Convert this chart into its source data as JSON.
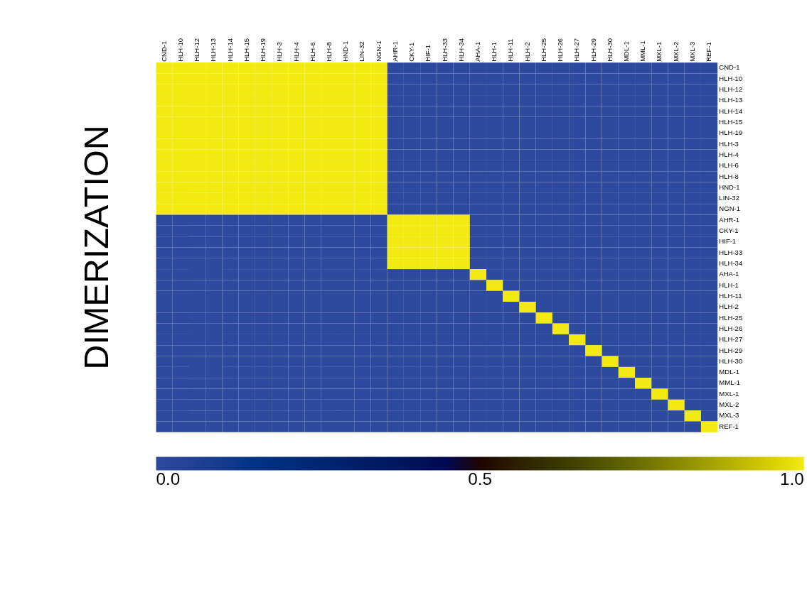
{
  "chart_data": {
    "type": "heatmap",
    "ylabel": "DIMERIZATION",
    "categories": [
      "CND-1",
      "HLH-10",
      "HLH-12",
      "HLH-13",
      "HLH-14",
      "HLH-15",
      "HLH-19",
      "HLH-3",
      "HLH-4",
      "HLH-6",
      "HLH-8",
      "HND-1",
      "LIN-32",
      "NGN-1",
      "AHR-1",
      "CKY-1",
      "HIF-1",
      "HLH-33",
      "HLH-34",
      "AHA-1",
      "HLH-1",
      "HLH-11",
      "HLH-2",
      "HLH-25",
      "HLH-26",
      "HLH-27",
      "HLH-29",
      "HLH-30",
      "MDL-1",
      "MML-1",
      "MXL-1",
      "MXL-2",
      "MXL-3",
      "REF-1"
    ],
    "y_categories": [
      "CND-1",
      "HLH-10",
      "HLH-12",
      "HLH-13",
      "HLH-14",
      "HLH-15",
      "HLH-19",
      "HLH-3",
      "HLH-4",
      "HLH-6",
      "HLH-8",
      "HND-1",
      "LIN-32",
      "NGN-1",
      "AHR-1",
      "CKY-1",
      "HIF-1",
      "HLH-33",
      "HLH-34",
      "AHA-1",
      "HLH-1",
      "HLH-11",
      "HLH-2",
      "HLH-25",
      "HLH-26",
      "HLH-27",
      "HLH-29",
      "HLH-30",
      "MDL-1",
      "MML-1",
      "MXL-1",
      "MXL-2",
      "MXL-3",
      "REF-1"
    ],
    "cells": [
      [
        1,
        1,
        1,
        1,
        1,
        1,
        1,
        1,
        1,
        1,
        1,
        1,
        1,
        1,
        0,
        0,
        0,
        0,
        0,
        0,
        0,
        0,
        0,
        0,
        0,
        0,
        0,
        0,
        0,
        0,
        0,
        0,
        0,
        0
      ],
      [
        1,
        1,
        1,
        1,
        1,
        1,
        1,
        1,
        1,
        1,
        1,
        1,
        1,
        1,
        0,
        0,
        0,
        0,
        0,
        0,
        0,
        0,
        0,
        0,
        0,
        0,
        0,
        0,
        0,
        0,
        0,
        0,
        0,
        0
      ],
      [
        1,
        1,
        1,
        1,
        1,
        1,
        1,
        1,
        1,
        1,
        1,
        1,
        1,
        1,
        0,
        0,
        0,
        0,
        0,
        0,
        0,
        0,
        0,
        0,
        0,
        0,
        0,
        0,
        0,
        0,
        0,
        0,
        0,
        0
      ],
      [
        1,
        1,
        1,
        1,
        1,
        1,
        1,
        1,
        1,
        1,
        1,
        1,
        1,
        1,
        0,
        0,
        0,
        0,
        0,
        0,
        0,
        0,
        0,
        0,
        0,
        0,
        0,
        0,
        0,
        0,
        0,
        0,
        0,
        0
      ],
      [
        1,
        1,
        1,
        1,
        1,
        1,
        1,
        1,
        1,
        1,
        1,
        1,
        1,
        1,
        0,
        0,
        0,
        0,
        0,
        0,
        0,
        0,
        0,
        0,
        0,
        0,
        0,
        0,
        0,
        0,
        0,
        0,
        0,
        0
      ],
      [
        1,
        1,
        1,
        1,
        1,
        1,
        1,
        1,
        1,
        1,
        1,
        1,
        1,
        1,
        0,
        0,
        0,
        0,
        0,
        0,
        0,
        0,
        0,
        0,
        0,
        0,
        0,
        0,
        0,
        0,
        0,
        0,
        0,
        0
      ],
      [
        1,
        1,
        1,
        1,
        1,
        1,
        1,
        1,
        1,
        1,
        1,
        1,
        1,
        1,
        0,
        0,
        0,
        0,
        0,
        0,
        0,
        0,
        0,
        0,
        0,
        0,
        0,
        0,
        0,
        0,
        0,
        0,
        0,
        0
      ],
      [
        1,
        1,
        1,
        1,
        1,
        1,
        1,
        1,
        1,
        1,
        1,
        1,
        1,
        1,
        0,
        0,
        0,
        0,
        0,
        0,
        0,
        0,
        0,
        0,
        0,
        0,
        0,
        0,
        0,
        0,
        0,
        0,
        0,
        0
      ],
      [
        1,
        1,
        1,
        1,
        1,
        1,
        1,
        1,
        1,
        1,
        1,
        1,
        1,
        1,
        0,
        0,
        0,
        0,
        0,
        0,
        0,
        0,
        0,
        0,
        0,
        0,
        0,
        0,
        0,
        0,
        0,
        0,
        0,
        0
      ],
      [
        1,
        1,
        1,
        1,
        1,
        1,
        1,
        1,
        1,
        1,
        1,
        1,
        1,
        1,
        0,
        0,
        0,
        0,
        0,
        0,
        0,
        0,
        0,
        0,
        0,
        0,
        0,
        0,
        0,
        0,
        0,
        0,
        0,
        0
      ],
      [
        1,
        1,
        1,
        1,
        1,
        1,
        1,
        1,
        1,
        1,
        1,
        1,
        1,
        1,
        0,
        0,
        0,
        0,
        0,
        0,
        0,
        0,
        0,
        0,
        0,
        0,
        0,
        0,
        0,
        0,
        0,
        0,
        0,
        0
      ],
      [
        1,
        1,
        1,
        1,
        1,
        1,
        1,
        1,
        1,
        1,
        1,
        1,
        1,
        1,
        0,
        0,
        0,
        0,
        0,
        0,
        0,
        0,
        0,
        0,
        0,
        0,
        0,
        0,
        0,
        0,
        0,
        0,
        0,
        0
      ],
      [
        1,
        1,
        1,
        1,
        1,
        1,
        1,
        1,
        1,
        1,
        1,
        1,
        1,
        1,
        0,
        0,
        0,
        0,
        0,
        0,
        0,
        0,
        0,
        0,
        0,
        0,
        0,
        0,
        0,
        0,
        0,
        0,
        0,
        0
      ],
      [
        1,
        1,
        1,
        1,
        1,
        1,
        1,
        1,
        1,
        1,
        1,
        1,
        1,
        1,
        0,
        0,
        0,
        0,
        0,
        0,
        0,
        0,
        0,
        0,
        0,
        0,
        0,
        0,
        0,
        0,
        0,
        0,
        0,
        0
      ],
      [
        0,
        0,
        0,
        0,
        0,
        0,
        0,
        0,
        0,
        0,
        0,
        0,
        0,
        0,
        1,
        1,
        1,
        1,
        1,
        0,
        0,
        0,
        0,
        0,
        0,
        0,
        0,
        0,
        0,
        0,
        0,
        0,
        0,
        0
      ],
      [
        0,
        0,
        0,
        0,
        0,
        0,
        0,
        0,
        0,
        0,
        0,
        0,
        0,
        0,
        1,
        1,
        1,
        1,
        1,
        0,
        0,
        0,
        0,
        0,
        0,
        0,
        0,
        0,
        0,
        0,
        0,
        0,
        0,
        0
      ],
      [
        0,
        0,
        0,
        0,
        0,
        0,
        0,
        0,
        0,
        0,
        0,
        0,
        0,
        0,
        1,
        1,
        1,
        1,
        1,
        0,
        0,
        0,
        0,
        0,
        0,
        0,
        0,
        0,
        0,
        0,
        0,
        0,
        0,
        0
      ],
      [
        0,
        0,
        0,
        0,
        0,
        0,
        0,
        0,
        0,
        0,
        0,
        0,
        0,
        0,
        1,
        1,
        1,
        1,
        1,
        0,
        0,
        0,
        0,
        0,
        0,
        0,
        0,
        0,
        0,
        0,
        0,
        0,
        0,
        0
      ],
      [
        0,
        0,
        0,
        0,
        0,
        0,
        0,
        0,
        0,
        0,
        0,
        0,
        0,
        0,
        1,
        1,
        1,
        1,
        1,
        0,
        0,
        0,
        0,
        0,
        0,
        0,
        0,
        0,
        0,
        0,
        0,
        0,
        0,
        0
      ],
      [
        0,
        0,
        0,
        0,
        0,
        0,
        0,
        0,
        0,
        0,
        0,
        0,
        0,
        0,
        0,
        0,
        0,
        0,
        0,
        1,
        0,
        0,
        0,
        0,
        0,
        0,
        0,
        0,
        0,
        0,
        0,
        0,
        0,
        0
      ],
      [
        0,
        0,
        0,
        0,
        0,
        0,
        0,
        0,
        0,
        0,
        0,
        0,
        0,
        0,
        0,
        0,
        0,
        0,
        0,
        0,
        1,
        0,
        0,
        0,
        0,
        0,
        0,
        0,
        0,
        0,
        0,
        0,
        0,
        0
      ],
      [
        0,
        0,
        0,
        0,
        0,
        0,
        0,
        0,
        0,
        0,
        0,
        0,
        0,
        0,
        0,
        0,
        0,
        0,
        0,
        0,
        0,
        1,
        0,
        0,
        0,
        0,
        0,
        0,
        0,
        0,
        0,
        0,
        0,
        0
      ],
      [
        0,
        0,
        0,
        0,
        0,
        0,
        0,
        0,
        0,
        0,
        0,
        0,
        0,
        0,
        0,
        0,
        0,
        0,
        0,
        0,
        0,
        0,
        1,
        0,
        0,
        0,
        0,
        0,
        0,
        0,
        0,
        0,
        0,
        0
      ],
      [
        0,
        0,
        0,
        0,
        0,
        0,
        0,
        0,
        0,
        0,
        0,
        0,
        0,
        0,
        0,
        0,
        0,
        0,
        0,
        0,
        0,
        0,
        0,
        1,
        0,
        0,
        0,
        0,
        0,
        0,
        0,
        0,
        0,
        0
      ],
      [
        0,
        0,
        0,
        0,
        0,
        0,
        0,
        0,
        0,
        0,
        0,
        0,
        0,
        0,
        0,
        0,
        0,
        0,
        0,
        0,
        0,
        0,
        0,
        0,
        1,
        0,
        0,
        0,
        0,
        0,
        0,
        0,
        0,
        0
      ],
      [
        0,
        0,
        0,
        0,
        0,
        0,
        0,
        0,
        0,
        0,
        0,
        0,
        0,
        0,
        0,
        0,
        0,
        0,
        0,
        0,
        0,
        0,
        0,
        0,
        0,
        1,
        0,
        0,
        0,
        0,
        0,
        0,
        0,
        0
      ],
      [
        0,
        0,
        0,
        0,
        0,
        0,
        0,
        0,
        0,
        0,
        0,
        0,
        0,
        0,
        0,
        0,
        0,
        0,
        0,
        0,
        0,
        0,
        0,
        0,
        0,
        0,
        1,
        0,
        0,
        0,
        0,
        0,
        0,
        0
      ],
      [
        0,
        0,
        0,
        0,
        0,
        0,
        0,
        0,
        0,
        0,
        0,
        0,
        0,
        0,
        0,
        0,
        0,
        0,
        0,
        0,
        0,
        0,
        0,
        0,
        0,
        0,
        0,
        1,
        0,
        0,
        0,
        0,
        0,
        0
      ],
      [
        0,
        0,
        0,
        0,
        0,
        0,
        0,
        0,
        0,
        0,
        0,
        0,
        0,
        0,
        0,
        0,
        0,
        0,
        0,
        0,
        0,
        0,
        0,
        0,
        0,
        0,
        0,
        0,
        1,
        0,
        0,
        0,
        0,
        0
      ],
      [
        0,
        0,
        0,
        0,
        0,
        0,
        0,
        0,
        0,
        0,
        0,
        0,
        0,
        0,
        0,
        0,
        0,
        0,
        0,
        0,
        0,
        0,
        0,
        0,
        0,
        0,
        0,
        0,
        0,
        1,
        0,
        0,
        0,
        0
      ],
      [
        0,
        0,
        0,
        0,
        0,
        0,
        0,
        0,
        0,
        0,
        0,
        0,
        0,
        0,
        0,
        0,
        0,
        0,
        0,
        0,
        0,
        0,
        0,
        0,
        0,
        0,
        0,
        0,
        0,
        0,
        1,
        0,
        0,
        0
      ],
      [
        0,
        0,
        0,
        0,
        0,
        0,
        0,
        0,
        0,
        0,
        0,
        0,
        0,
        0,
        0,
        0,
        0,
        0,
        0,
        0,
        0,
        0,
        0,
        0,
        0,
        0,
        0,
        0,
        0,
        0,
        0,
        1,
        0,
        0
      ],
      [
        0,
        0,
        0,
        0,
        0,
        0,
        0,
        0,
        0,
        0,
        0,
        0,
        0,
        0,
        0,
        0,
        0,
        0,
        0,
        0,
        0,
        0,
        0,
        0,
        0,
        0,
        0,
        0,
        0,
        0,
        0,
        0,
        1,
        0
      ],
      [
        0,
        0,
        0,
        0,
        0,
        0,
        0,
        0,
        0,
        0,
        0,
        0,
        0,
        0,
        0,
        0,
        0,
        0,
        0,
        0,
        0,
        0,
        0,
        0,
        0,
        0,
        0,
        0,
        0,
        0,
        0,
        0,
        0,
        1
      ]
    ],
    "clim": [
      0,
      1
    ],
    "cticks": [
      {
        "value": 0,
        "label": "0.0"
      },
      {
        "value": 0.5,
        "label": "0.5"
      },
      {
        "value": 1,
        "label": "1.0"
      }
    ]
  }
}
